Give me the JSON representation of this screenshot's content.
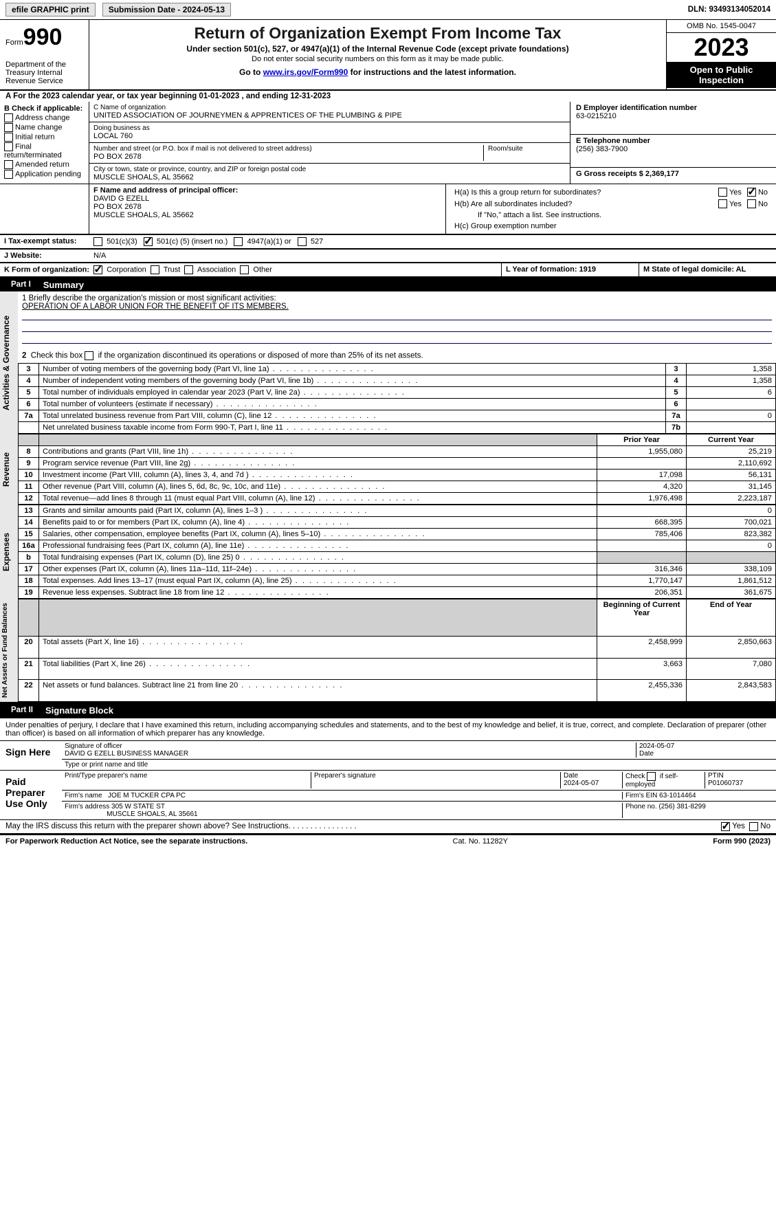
{
  "topbar": {
    "efile_label": "efile GRAPHIC print",
    "submission_label": "Submission Date - 2024-05-13",
    "dln_label": "DLN: 93493134052014"
  },
  "header": {
    "form_word": "Form",
    "form_number": "990",
    "dept": "Department of the Treasury\nInternal Revenue Service",
    "title": "Return of Organization Exempt From Income Tax",
    "sub1": "Under section 501(c), 527, or 4947(a)(1) of the Internal Revenue Code (except private foundations)",
    "sub2": "Do not enter social security numbers on this form as it may be made public.",
    "sub3_pre": "Go to ",
    "sub3_link": "www.irs.gov/Form990",
    "sub3_post": " for instructions and the latest information.",
    "omb": "OMB No. 1545-0047",
    "year": "2023",
    "open": "Open to Public Inspection"
  },
  "row_a": {
    "text": "A For the 2023 calendar year, or tax year beginning 01-01-2023    , and ending 12-31-2023"
  },
  "col_b": {
    "title": "B Check if applicable:",
    "items": [
      "Address change",
      "Name change",
      "Initial return",
      "Final return/terminated",
      "Amended return",
      "Application pending"
    ]
  },
  "col_c": {
    "name_lbl": "C Name of organization",
    "name_val": "UNITED ASSOCIATION OF JOURNEYMEN & APPRENTICES OF THE PLUMBING & PIPE",
    "dba_lbl": "Doing business as",
    "dba_val": "LOCAL 760",
    "addr_lbl": "Number and street (or P.O. box if mail is not delivered to street address)",
    "addr_val": "PO BOX 2678",
    "room_lbl": "Room/suite",
    "city_lbl": "City or town, state or province, country, and ZIP or foreign postal code",
    "city_val": "MUSCLE SHOALS, AL  35662"
  },
  "col_d": {
    "ein_lbl": "D Employer identification number",
    "ein_val": "63-0215210",
    "phone_lbl": "E Telephone number",
    "phone_val": "(256) 383-7900",
    "gross_lbl": "G Gross receipts $ 2,369,177"
  },
  "officer": {
    "label": "F   Name and address of principal officer:",
    "name": "DAVID G EZELL",
    "addr1": "PO BOX 2678",
    "addr2": "MUSCLE SHOALS, AL  35662"
  },
  "h_block": {
    "ha": "H(a)  Is this a group return for subordinates?",
    "hb": "H(b)  Are all subordinates included?",
    "hb_note": "If \"No,\" attach a list. See instructions.",
    "hc": "H(c)  Group exemption number",
    "yes": "Yes",
    "no": "No"
  },
  "tax_status": {
    "label": "I   Tax-exempt status:",
    "opt1": "501(c)(3)",
    "opt2_pre": "501(c) (",
    "opt2_val": "5",
    "opt2_post": ") (insert no.)",
    "opt3": "4947(a)(1) or",
    "opt4": "527"
  },
  "website": {
    "label": "J   Website:",
    "val": "N/A"
  },
  "k_row": {
    "label": "K Form of organization:",
    "opts": [
      "Corporation",
      "Trust",
      "Association",
      "Other"
    ],
    "checked": 0,
    "l_label": "L Year of formation: 1919",
    "m_label": "M State of legal domicile: AL"
  },
  "part1": {
    "label": "Part I",
    "title": "Summary"
  },
  "summary": {
    "line1_lbl": "1   Briefly describe the organization's mission or most significant activities:",
    "line1_val": "OPERATION OF A LABOR UNION FOR THE BENEFIT OF ITS MEMBERS.",
    "line2": "2    Check this box       if the organization discontinued its operations or disposed of more than 25% of its net assets.",
    "rows_gov": [
      {
        "n": "3",
        "t": "Number of voting members of the governing body (Part VI, line 1a)",
        "box": "3",
        "v": "1,358"
      },
      {
        "n": "4",
        "t": "Number of independent voting members of the governing body (Part VI, line 1b)",
        "box": "4",
        "v": "1,358"
      },
      {
        "n": "5",
        "t": "Total number of individuals employed in calendar year 2023 (Part V, line 2a)",
        "box": "5",
        "v": "6"
      },
      {
        "n": "6",
        "t": "Total number of volunteers (estimate if necessary)",
        "box": "6",
        "v": ""
      },
      {
        "n": "7a",
        "t": "Total unrelated business revenue from Part VIII, column (C), line 12",
        "box": "7a",
        "v": "0"
      },
      {
        "n": "",
        "t": "Net unrelated business taxable income from Form 990-T, Part I, line 11",
        "box": "7b",
        "v": ""
      }
    ],
    "col_prior": "Prior Year",
    "col_curr": "Current Year",
    "rows_rev": [
      {
        "n": "8",
        "t": "Contributions and grants (Part VIII, line 1h)",
        "p": "1,955,080",
        "c": "25,219"
      },
      {
        "n": "9",
        "t": "Program service revenue (Part VIII, line 2g)",
        "p": "",
        "c": "2,110,692"
      },
      {
        "n": "10",
        "t": "Investment income (Part VIII, column (A), lines 3, 4, and 7d )",
        "p": "17,098",
        "c": "56,131"
      },
      {
        "n": "11",
        "t": "Other revenue (Part VIII, column (A), lines 5, 6d, 8c, 9c, 10c, and 11e)",
        "p": "4,320",
        "c": "31,145"
      },
      {
        "n": "12",
        "t": "Total revenue—add lines 8 through 11 (must equal Part VIII, column (A), line 12)",
        "p": "1,976,498",
        "c": "2,223,187"
      }
    ],
    "rows_exp": [
      {
        "n": "13",
        "t": "Grants and similar amounts paid (Part IX, column (A), lines 1–3 )",
        "p": "",
        "c": "0"
      },
      {
        "n": "14",
        "t": "Benefits paid to or for members (Part IX, column (A), line 4)",
        "p": "668,395",
        "c": "700,021"
      },
      {
        "n": "15",
        "t": "Salaries, other compensation, employee benefits (Part IX, column (A), lines 5–10)",
        "p": "785,406",
        "c": "823,382"
      },
      {
        "n": "16a",
        "t": "Professional fundraising fees (Part IX, column (A), line 11e)",
        "p": "",
        "c": "0"
      },
      {
        "n": "b",
        "t": "Total fundraising expenses (Part IX, column (D), line 25) 0",
        "p": "shade",
        "c": "shade"
      },
      {
        "n": "17",
        "t": "Other expenses (Part IX, column (A), lines 11a–11d, 11f–24e)",
        "p": "316,346",
        "c": "338,109"
      },
      {
        "n": "18",
        "t": "Total expenses. Add lines 13–17 (must equal Part IX, column (A), line 25)",
        "p": "1,770,147",
        "c": "1,861,512"
      },
      {
        "n": "19",
        "t": "Revenue less expenses. Subtract line 18 from line 12",
        "p": "206,351",
        "c": "361,675"
      }
    ],
    "col_beg": "Beginning of Current Year",
    "col_end": "End of Year",
    "rows_net": [
      {
        "n": "20",
        "t": "Total assets (Part X, line 16)",
        "p": "2,458,999",
        "c": "2,850,663"
      },
      {
        "n": "21",
        "t": "Total liabilities (Part X, line 26)",
        "p": "3,663",
        "c": "7,080"
      },
      {
        "n": "22",
        "t": "Net assets or fund balances. Subtract line 21 from line 20",
        "p": "2,455,336",
        "c": "2,843,583"
      }
    ]
  },
  "vert_labels": {
    "gov": "Activities & Governance",
    "rev": "Revenue",
    "exp": "Expenses",
    "net": "Net Assets or Fund Balances"
  },
  "part2": {
    "label": "Part II",
    "title": "Signature Block"
  },
  "perjury": "Under penalties of perjury, I declare that I have examined this return, including accompanying schedules and statements, and to the best of my knowledge and belief, it is true, correct, and complete. Declaration of preparer (other than officer) is based on all information of which preparer has any knowledge.",
  "sign": {
    "here": "Sign Here",
    "sig_lbl": "Signature of officer",
    "date_lbl": "Date",
    "date_val": "2024-05-07",
    "officer": "DAVID G EZELL BUSINESS MANAGER",
    "type_lbl": "Type or print name and title"
  },
  "preparer": {
    "title": "Paid Preparer Use Only",
    "cols": [
      "Print/Type preparer's name",
      "Preparer's signature",
      "Date",
      "",
      "PTIN"
    ],
    "date": "2024-05-07",
    "self_emp": "Check        if self-employed",
    "ptin": "P01060737",
    "firm_lbl": "Firm's name",
    "firm_val": "JOE M TUCKER CPA PC",
    "ein_lbl": "Firm's EIN",
    "ein_val": "63-1014464",
    "addr_lbl": "Firm's address",
    "addr_val1": "305 W STATE ST",
    "addr_val2": "MUSCLE SHOALS, AL  35661",
    "phone_lbl": "Phone no.",
    "phone_val": "(256) 381-8299"
  },
  "discuss": {
    "text": "May the IRS discuss this return with the preparer shown above? See Instructions.",
    "yes": "Yes",
    "no": "No"
  },
  "footer": {
    "left": "For Paperwork Reduction Act Notice, see the separate instructions.",
    "mid": "Cat. No. 11282Y",
    "right_pre": "Form ",
    "right_num": "990",
    "right_post": " (2023)"
  },
  "colors": {
    "link": "#0000cc",
    "black": "#000000",
    "shade": "#d0d0d0",
    "greybg": "#e8e8e8"
  }
}
